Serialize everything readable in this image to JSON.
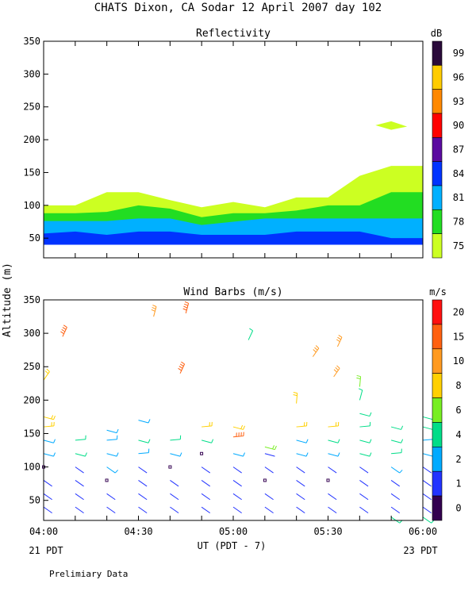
{
  "title": "CHATS Dixon, CA  Sodar  12 April 2007  day 102",
  "ylabel": "Altitude (m)",
  "xlabel": "UT  (PDT - 7)",
  "xticks": [
    "04:00",
    "04:30",
    "05:00",
    "05:30",
    "06:00"
  ],
  "left_bottom_label": "21 PDT",
  "right_bottom_label": "23 PDT",
  "footer": "Prelimiary Data",
  "chart_data": [
    {
      "type": "area",
      "title": "Reflectivity",
      "x_unit": "hours UT",
      "xlim": [
        4.0,
        6.0
      ],
      "ylim": [
        20,
        350
      ],
      "yticks": [
        50,
        100,
        150,
        200,
        250,
        300,
        350
      ],
      "colorbar": {
        "unit": "dB",
        "labels": [
          "99",
          "96",
          "93",
          "90",
          "87",
          "84",
          "81",
          "78",
          "75"
        ],
        "colors": [
          "#2a0a3a",
          "#ffcc00",
          "#ff8800",
          "#ff0000",
          "#5a0aa0",
          "#0033ff",
          "#00b0ff",
          "#22dd22",
          "#ccff22"
        ]
      },
      "x": [
        4.0,
        4.167,
        4.333,
        4.5,
        4.667,
        4.833,
        5.0,
        5.167,
        5.333,
        5.5,
        5.667,
        5.833,
        6.0
      ],
      "base": 40,
      "series": [
        {
          "values": [
            100,
            100,
            120,
            120,
            108,
            97,
            105,
            97,
            112,
            112,
            145,
            160,
            160
          ],
          "color": "#ccff22"
        },
        {
          "values": [
            88,
            88,
            90,
            100,
            95,
            82,
            88,
            88,
            92,
            100,
            100,
            120,
            120
          ],
          "color": "#22dd22"
        },
        {
          "values": [
            76,
            76,
            76,
            80,
            80,
            70,
            75,
            80,
            80,
            80,
            80,
            80,
            80
          ],
          "color": "#00b0ff"
        },
        {
          "values": [
            57,
            60,
            55,
            60,
            60,
            55,
            55,
            55,
            60,
            60,
            60,
            50,
            50
          ],
          "color": "#0033ff"
        }
      ],
      "patches": [
        {
          "x": [
            5.75,
            5.833,
            5.917,
            5.833
          ],
          "y": [
            222,
            228,
            220,
            215
          ],
          "color": "#ccff22"
        }
      ]
    },
    {
      "type": "scatter",
      "title": "Wind Barbs (m/s)",
      "x_unit": "hours UT",
      "xlim": [
        4.0,
        6.0
      ],
      "ylim": [
        20,
        350
      ],
      "yticks": [
        50,
        100,
        150,
        200,
        250,
        300,
        350
      ],
      "colorbar": {
        "unit": "m/s",
        "labels": [
          "20",
          "15",
          "10",
          "8",
          "6",
          "4",
          "2",
          "1",
          "0"
        ],
        "colors": [
          "#ff1010",
          "#ff6010",
          "#ff9a20",
          "#ffd000",
          "#77ee22",
          "#00dd88",
          "#00aaff",
          "#2233ff",
          "#330050"
        ]
      },
      "barbs": [
        {
          "x": 4.0,
          "y": 40,
          "speed": 1.5
        },
        {
          "x": 4.0,
          "y": 60,
          "speed": 1.5
        },
        {
          "x": 4.0,
          "y": 80,
          "speed": 1.2
        },
        {
          "x": 4.0,
          "y": 100,
          "speed": 0.5
        },
        {
          "x": 4.0,
          "y": 120,
          "speed": 3
        },
        {
          "x": 4.0,
          "y": 140,
          "speed": 3
        },
        {
          "x": 4.0,
          "y": 160,
          "speed": 9
        },
        {
          "x": 4.0,
          "y": 175,
          "speed": 9
        },
        {
          "x": 4.0,
          "y": 230,
          "speed": 9
        },
        {
          "x": 4.1,
          "y": 295,
          "speed": 15
        },
        {
          "x": 4.167,
          "y": 40,
          "speed": 1.5
        },
        {
          "x": 4.167,
          "y": 60,
          "speed": 1.5
        },
        {
          "x": 4.167,
          "y": 80,
          "speed": 1.2
        },
        {
          "x": 4.167,
          "y": 100,
          "speed": 1.2
        },
        {
          "x": 4.167,
          "y": 120,
          "speed": 5
        },
        {
          "x": 4.167,
          "y": 140,
          "speed": 5
        },
        {
          "x": 4.333,
          "y": 40,
          "speed": 1.5
        },
        {
          "x": 4.333,
          "y": 60,
          "speed": 1.5
        },
        {
          "x": 4.333,
          "y": 80,
          "speed": 0.5
        },
        {
          "x": 4.333,
          "y": 100,
          "speed": 3
        },
        {
          "x": 4.333,
          "y": 120,
          "speed": 3
        },
        {
          "x": 4.333,
          "y": 140,
          "speed": 3
        },
        {
          "x": 4.333,
          "y": 155,
          "speed": 3
        },
        {
          "x": 4.5,
          "y": 40,
          "speed": 1.5
        },
        {
          "x": 4.5,
          "y": 60,
          "speed": 1.5
        },
        {
          "x": 4.5,
          "y": 80,
          "speed": 1.2
        },
        {
          "x": 4.5,
          "y": 100,
          "speed": 1.2
        },
        {
          "x": 4.5,
          "y": 120,
          "speed": 3
        },
        {
          "x": 4.5,
          "y": 140,
          "speed": 5
        },
        {
          "x": 4.5,
          "y": 170,
          "speed": 3
        },
        {
          "x": 4.58,
          "y": 325,
          "speed": 10
        },
        {
          "x": 4.667,
          "y": 40,
          "speed": 1.5
        },
        {
          "x": 4.667,
          "y": 60,
          "speed": 1.5
        },
        {
          "x": 4.667,
          "y": 80,
          "speed": 1.5
        },
        {
          "x": 4.667,
          "y": 100,
          "speed": 0.5
        },
        {
          "x": 4.667,
          "y": 120,
          "speed": 3
        },
        {
          "x": 4.667,
          "y": 140,
          "speed": 5
        },
        {
          "x": 4.72,
          "y": 240,
          "speed": 15
        },
        {
          "x": 4.75,
          "y": 330,
          "speed": 15
        },
        {
          "x": 4.833,
          "y": 40,
          "speed": 1.5
        },
        {
          "x": 4.833,
          "y": 60,
          "speed": 1.5
        },
        {
          "x": 4.833,
          "y": 80,
          "speed": 1.5
        },
        {
          "x": 4.833,
          "y": 100,
          "speed": 1.2
        },
        {
          "x": 4.833,
          "y": 120,
          "speed": 0.5
        },
        {
          "x": 4.833,
          "y": 140,
          "speed": 5
        },
        {
          "x": 4.833,
          "y": 160,
          "speed": 9
        },
        {
          "x": 5.0,
          "y": 40,
          "speed": 1.5
        },
        {
          "x": 5.0,
          "y": 60,
          "speed": 1.5
        },
        {
          "x": 5.0,
          "y": 80,
          "speed": 1.5
        },
        {
          "x": 5.0,
          "y": 100,
          "speed": 1.2
        },
        {
          "x": 5.0,
          "y": 120,
          "speed": 3
        },
        {
          "x": 5.0,
          "y": 145,
          "speed": 15
        },
        {
          "x": 5.0,
          "y": 160,
          "speed": 9
        },
        {
          "x": 5.08,
          "y": 290,
          "speed": 5
        },
        {
          "x": 5.167,
          "y": 40,
          "speed": 1.5
        },
        {
          "x": 5.167,
          "y": 60,
          "speed": 1.5
        },
        {
          "x": 5.167,
          "y": 80,
          "speed": 0.5
        },
        {
          "x": 5.167,
          "y": 100,
          "speed": 1.2
        },
        {
          "x": 5.167,
          "y": 120,
          "speed": 1.2
        },
        {
          "x": 5.167,
          "y": 130,
          "speed": 6
        },
        {
          "x": 5.333,
          "y": 40,
          "speed": 1.5
        },
        {
          "x": 5.333,
          "y": 60,
          "speed": 1.5
        },
        {
          "x": 5.333,
          "y": 80,
          "speed": 1.5
        },
        {
          "x": 5.333,
          "y": 100,
          "speed": 1.2
        },
        {
          "x": 5.333,
          "y": 120,
          "speed": 3
        },
        {
          "x": 5.333,
          "y": 140,
          "speed": 3
        },
        {
          "x": 5.333,
          "y": 160,
          "speed": 9
        },
        {
          "x": 5.333,
          "y": 195,
          "speed": 9
        },
        {
          "x": 5.42,
          "y": 265,
          "speed": 10
        },
        {
          "x": 5.5,
          "y": 40,
          "speed": 1.5
        },
        {
          "x": 5.5,
          "y": 60,
          "speed": 1.5
        },
        {
          "x": 5.5,
          "y": 80,
          "speed": 0.5
        },
        {
          "x": 5.5,
          "y": 100,
          "speed": 1.2
        },
        {
          "x": 5.5,
          "y": 120,
          "speed": 3
        },
        {
          "x": 5.5,
          "y": 140,
          "speed": 5
        },
        {
          "x": 5.5,
          "y": 160,
          "speed": 9
        },
        {
          "x": 5.53,
          "y": 235,
          "speed": 10
        },
        {
          "x": 5.55,
          "y": 280,
          "speed": 10
        },
        {
          "x": 5.667,
          "y": 40,
          "speed": 1.5
        },
        {
          "x": 5.667,
          "y": 60,
          "speed": 1.5
        },
        {
          "x": 5.667,
          "y": 80,
          "speed": 1.2
        },
        {
          "x": 5.667,
          "y": 100,
          "speed": 1.2
        },
        {
          "x": 5.667,
          "y": 120,
          "speed": 5
        },
        {
          "x": 5.667,
          "y": 140,
          "speed": 5
        },
        {
          "x": 5.667,
          "y": 160,
          "speed": 5
        },
        {
          "x": 5.667,
          "y": 180,
          "speed": 5
        },
        {
          "x": 5.667,
          "y": 200,
          "speed": 5
        },
        {
          "x": 5.667,
          "y": 220,
          "speed": 6
        },
        {
          "x": 5.833,
          "y": 25,
          "speed": 4
        },
        {
          "x": 5.833,
          "y": 40,
          "speed": 1.2
        },
        {
          "x": 5.833,
          "y": 60,
          "speed": 1.5
        },
        {
          "x": 5.833,
          "y": 80,
          "speed": 1.5
        },
        {
          "x": 5.833,
          "y": 100,
          "speed": 3
        },
        {
          "x": 5.833,
          "y": 120,
          "speed": 5
        },
        {
          "x": 5.833,
          "y": 140,
          "speed": 5
        },
        {
          "x": 5.833,
          "y": 160,
          "speed": 5
        },
        {
          "x": 6.0,
          "y": 25,
          "speed": 4
        },
        {
          "x": 6.0,
          "y": 40,
          "speed": 1.2
        },
        {
          "x": 6.0,
          "y": 60,
          "speed": 1.2
        },
        {
          "x": 6.0,
          "y": 80,
          "speed": 1.2
        },
        {
          "x": 6.0,
          "y": 100,
          "speed": 1.2
        },
        {
          "x": 6.0,
          "y": 120,
          "speed": 3
        },
        {
          "x": 6.0,
          "y": 140,
          "speed": 3
        },
        {
          "x": 6.0,
          "y": 160,
          "speed": 5
        },
        {
          "x": 6.0,
          "y": 175,
          "speed": 5
        }
      ]
    }
  ]
}
